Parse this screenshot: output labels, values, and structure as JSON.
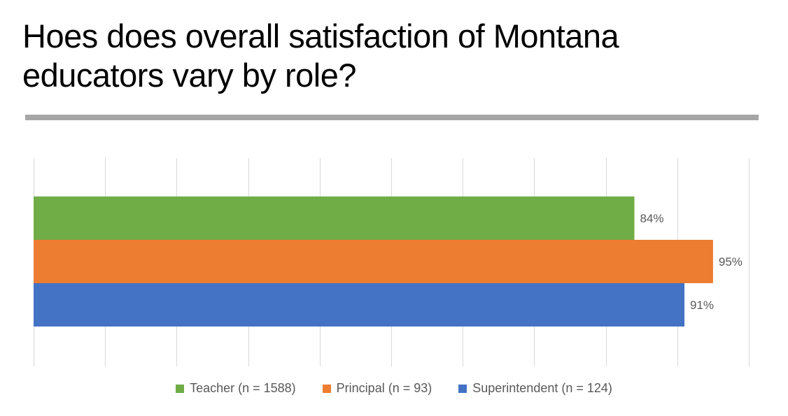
{
  "title": "Hoes does overall satisfaction of Montana educators vary by role?",
  "chart_data": {
    "type": "bar",
    "orientation": "horizontal",
    "xlim": [
      0,
      100
    ],
    "grid": true,
    "legend_position": "bottom",
    "series": [
      {
        "name": "Teacher (n = 1588)",
        "value": 84,
        "label": "84%",
        "color": "#70ad47"
      },
      {
        "name": "Principal (n = 93)",
        "value": 95,
        "label": "95%",
        "color": "#ed7d31"
      },
      {
        "name": "Superintendent (n = 124)",
        "value": 91,
        "label": "91%",
        "color": "#4472c4"
      }
    ]
  }
}
